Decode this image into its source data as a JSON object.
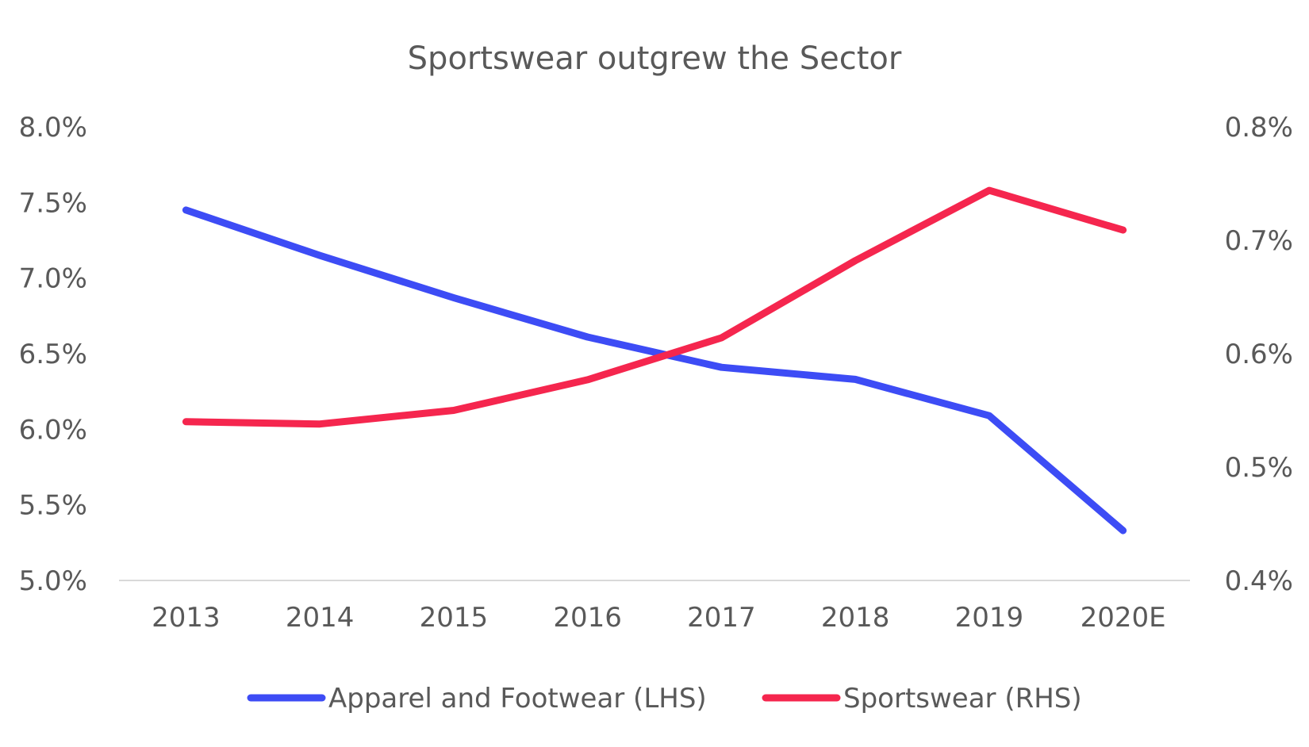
{
  "chart_data": {
    "type": "line",
    "title": "Sportswear outgrew the Sector",
    "categories": [
      "2013",
      "2014",
      "2015",
      "2016",
      "2017",
      "2018",
      "2019",
      "2020E"
    ],
    "y_left": {
      "ylim": [
        5.0,
        8.0
      ],
      "ticks": [
        5.0,
        5.5,
        6.0,
        6.5,
        7.0,
        7.5,
        8.0
      ],
      "tick_labels": [
        "5.0%",
        "5.5%",
        "6.0%",
        "6.5%",
        "7.0%",
        "7.5%",
        "8.0%"
      ]
    },
    "y_right": {
      "ylim": [
        0.4,
        0.8
      ],
      "ticks": [
        0.4,
        0.5,
        0.6,
        0.7,
        0.8
      ],
      "tick_labels": [
        "0.4%",
        "0.5%",
        "0.6%",
        "0.7%",
        "0.8%"
      ]
    },
    "series": [
      {
        "name": "Apparel and Footwear (LHS)",
        "axis": "left",
        "color": "#3d4cf5",
        "values": [
          7.45,
          7.15,
          6.87,
          6.61,
          6.41,
          6.33,
          6.09,
          5.33
        ]
      },
      {
        "name": "Sportswear (RHS)",
        "axis": "right",
        "color": "#f5264e",
        "values": [
          0.54,
          0.538,
          0.55,
          0.577,
          0.614,
          0.682,
          0.744,
          0.709
        ]
      }
    ],
    "grid": false,
    "legend_position": "bottom"
  }
}
